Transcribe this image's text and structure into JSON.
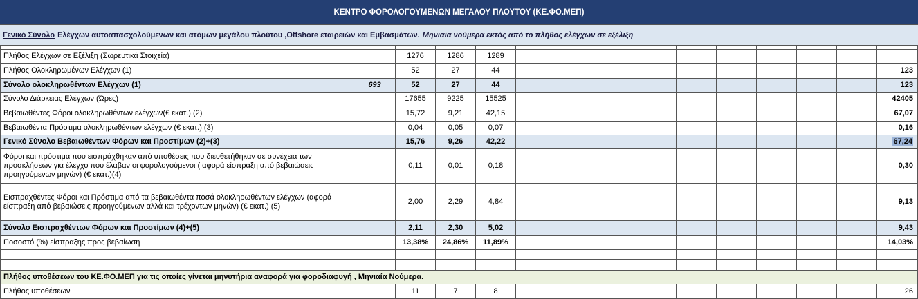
{
  "header": {
    "title": "ΚΕΝΤΡΟ ΦΟΡΟΛΟΓΟΥΜΕΝΩΝ ΜΕΓΑΛΟΥ ΠΛΟΥΤΟΥ (ΚΕ.ΦΟ.ΜΕΠ)"
  },
  "subtitle": {
    "lead": "Γενικό Σύνολο",
    "main": "Ελέγχων αυτοαπασχολούμενων και ατόμων μεγάλου πλούτου ,Offshore εταιρειών και Εμβασμάτων.",
    "note": "Μηνιαία νούμερα εκτός από το πλήθος ελέγχων σε εξέλιξη"
  },
  "table": {
    "rows": [
      {
        "label": "Πλήθος Ελέγχων σε Εξέλιξη (Σωρευτικά Στοιχεία)",
        "months": [
          "1276",
          "1286",
          "1289"
        ]
      },
      {
        "label": "Πλήθος Ολοκληρωμένων Ελέγχων (1)",
        "months": [
          "52",
          "27",
          "44"
        ],
        "total": "123"
      },
      {
        "label": "Σύνολο ολοκληρωθέντων Ελέγχων (1)",
        "prior": "693",
        "months": [
          "52",
          "27",
          "44"
        ],
        "total": "123",
        "emphasis": true,
        "bold_values": true
      },
      {
        "label": "Σύνολο Διάρκειας Ελέγχων (Ώρες)",
        "months": [
          "17655",
          "9225",
          "15525"
        ],
        "total": "42405"
      },
      {
        "label": "Βεβαιωθέντες Φόροι ολοκληρωθέντων ελέγχων(€ εκατ.) (2)",
        "months": [
          "15,72",
          "9,21",
          "42,15"
        ],
        "total": "67,07"
      },
      {
        "label": "Βεβαιωθέντα Πρόστιμα ολοκληρωθέντων ελέγχων (€ εκατ.) (3)",
        "months": [
          "0,04",
          "0,05",
          "0,07"
        ],
        "total": "0,16"
      },
      {
        "label": "Γενικό Σύνολο Βεβαιωθέντων Φόρων και Προστίμων (2)+(3)",
        "months": [
          "15,76",
          "9,26",
          "42,22"
        ],
        "total": "67,24",
        "emphasis": true,
        "bold_values": true,
        "selected_total": true
      },
      {
        "label": "Φόροι και πρόστιμα που εισπράχθηκαν από υποθέσεις που διευθετήθηκαν σε συνέχεια των προσκλήσεων για έλεγχο που έλαβαν οι φορολογούμενοι ( αφορά είσπραξη από βεβαιώσεις προηγούμενων μηνών) (€ εκατ.)(4)",
        "months": [
          "0,11",
          "0,01",
          "0,18"
        ],
        "total": "0,30"
      },
      {
        "label": "Εισπραχθέντες Φόροι και Πρόστιμα από τα βεβαιωθέντα ποσά ολοκληρωθέντων ελέγχων (αφορά είσπραξη από βεβαιώσεις προηγούμενων αλλά και τρέχοντων μηνών) (€ εκατ.) (5)",
        "months": [
          "2,00",
          "2,29",
          "4,84"
        ],
        "total": "9,13"
      },
      {
        "label": "Σύνολο Εισπραχθέντων Φόρων και Προστίμων (4)+(5)",
        "months": [
          "2,11",
          "2,30",
          "5,02"
        ],
        "total": "9,43",
        "emphasis": true,
        "bold_values": true
      },
      {
        "label": "Ποσοστό (%) είσπραξης προς βεβαίωση",
        "months": [
          "13,38%",
          "24,86%",
          "11,89%"
        ],
        "total": "14,03%",
        "bold_values": true
      }
    ]
  },
  "cases": {
    "title": "Πλήθος υποθέσεων του ΚΕ.ΦΟ.ΜΕΠ για τις οποίες γίνεται μηνυτήρια αναφορά για φοροδιαφυγή , Μηνιαία Νούμερα.",
    "rows": [
      {
        "label": "Πλήθος υποθέσεων",
        "months": [
          "11",
          "7",
          "8"
        ],
        "total": "26"
      }
    ]
  }
}
